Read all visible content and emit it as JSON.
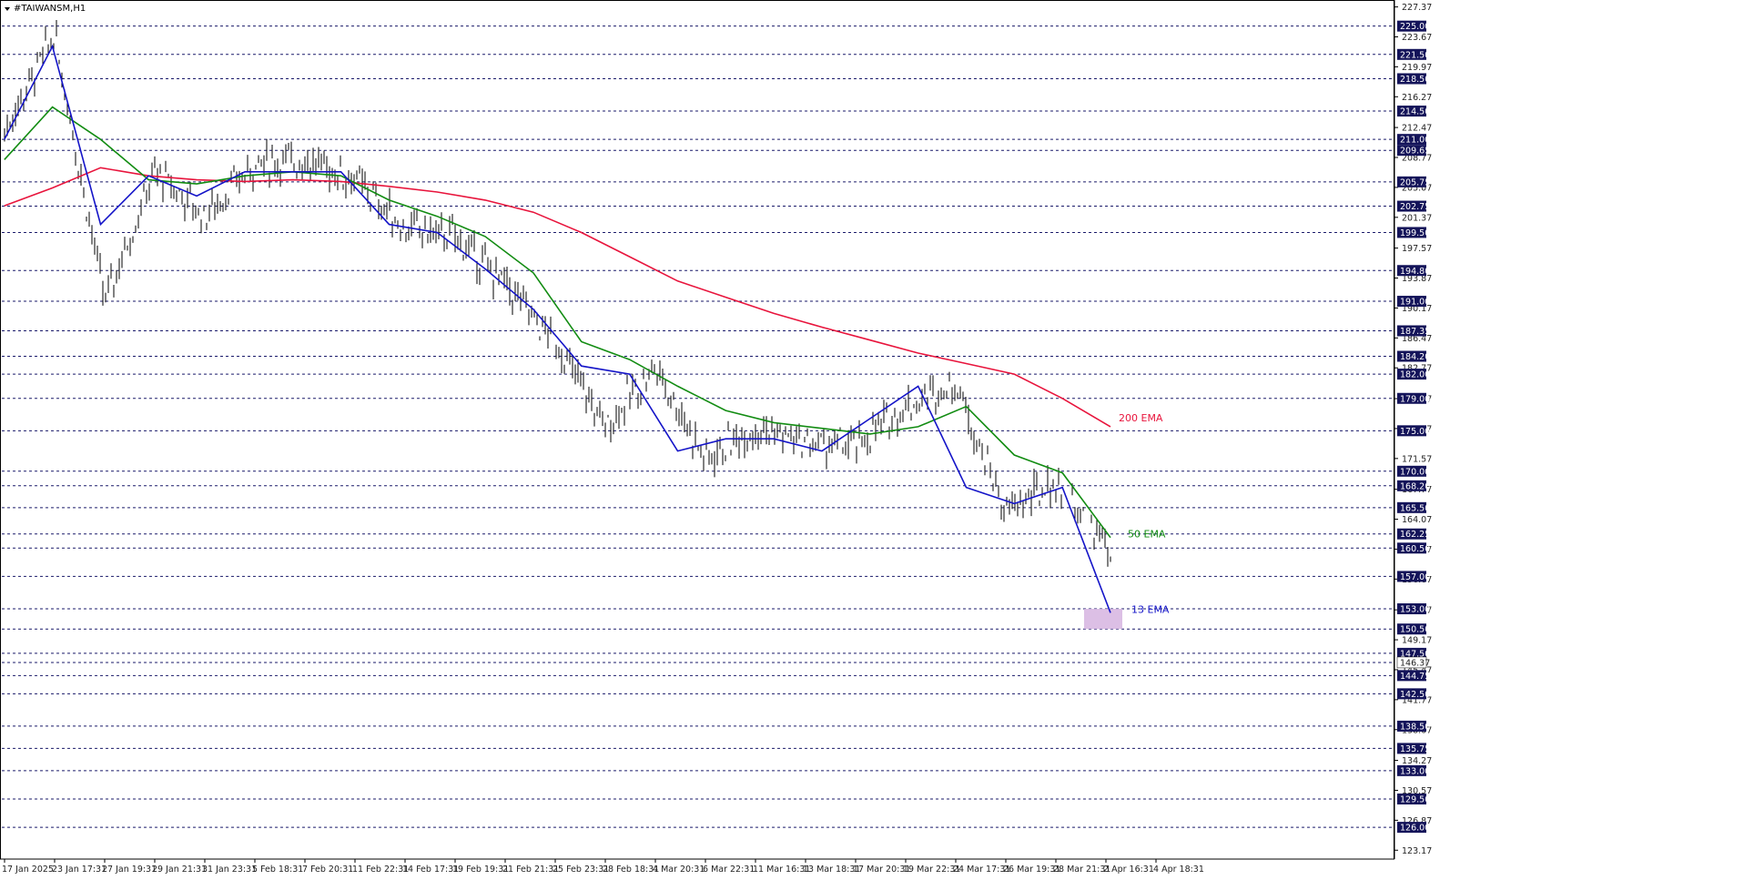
{
  "chart_data": {
    "type": "line",
    "title": "#TAIWANSM,H1",
    "x_labels": [
      "17 Jan 2025",
      "23 Jan 17:31",
      "27 Jan 19:31",
      "29 Jan 21:31",
      "31 Jan 23:31",
      "5 Feb 18:31",
      "7 Feb 20:31",
      "11 Feb 22:31",
      "14 Feb 17:31",
      "19 Feb 19:31",
      "21 Feb 21:31",
      "25 Feb 23:31",
      "28 Feb 18:31",
      "4 Mar 20:31",
      "6 Mar 22:31",
      "11 Mar 16:31",
      "13 Mar 18:31",
      "17 Mar 20:31",
      "19 Mar 22:31",
      "24 Mar 17:31",
      "26 Mar 19:31",
      "28 Mar 21:31",
      "2 Apr 16:31",
      "4 Apr 18:31"
    ],
    "y_ticks": [
      "227.37",
      "223.67",
      "219.97",
      "216.27",
      "212.47",
      "208.77",
      "205.07",
      "201.37",
      "197.57",
      "193.87",
      "190.17",
      "186.47",
      "182.77",
      "178.97",
      "175.27",
      "171.57",
      "167.77",
      "164.07",
      "160.37",
      "156.67",
      "152.87",
      "149.17",
      "145.47",
      "141.77",
      "138.07",
      "134.27",
      "130.57",
      "126.87",
      "123.17"
    ],
    "ylim": [
      122.3,
      228.0
    ],
    "level_tags": [
      "225.00",
      "221.50",
      "218.50",
      "214.50",
      "211.00",
      "209.65",
      "205.75",
      "202.75",
      "199.50",
      "194.80",
      "191.00",
      "187.35",
      "184.20",
      "182.00",
      "179.00",
      "175.00",
      "170.00",
      "168.20",
      "165.50",
      "162.25",
      "160.50",
      "157.00",
      "153.00",
      "150.50",
      "147.50",
      "146.37",
      "144.75",
      "142.50",
      "138.50",
      "135.75",
      "133.00",
      "129.50",
      "126.00"
    ],
    "current_price": "146.37",
    "series": [
      {
        "name": "200 EMA",
        "color": "#e8143c",
        "values": [
          202.8,
          205.0,
          207.5,
          206.5,
          206.0,
          205.8,
          206.0,
          205.8,
          205.2,
          204.5,
          203.5,
          202.0,
          199.5,
          196.5,
          193.5,
          191.5,
          189.5,
          187.8,
          186.2,
          184.6,
          183.3,
          182.0,
          179.0,
          175.5
        ]
      },
      {
        "name": "50 EMA",
        "color": "#128c12",
        "values": [
          208.5,
          215.0,
          211.0,
          206.0,
          205.5,
          206.5,
          207.0,
          206.5,
          203.5,
          201.5,
          199.0,
          194.5,
          186.0,
          183.8,
          180.5,
          177.5,
          176.0,
          175.3,
          174.6,
          175.5,
          178.0,
          172.0,
          169.8,
          161.8
        ]
      },
      {
        "name": "13 EMA",
        "color": "#1414c8",
        "values": [
          211.0,
          222.5,
          200.5,
          206.5,
          204.0,
          207.0,
          207.0,
          207.0,
          200.5,
          199.5,
          195.0,
          190.0,
          183.0,
          182.0,
          172.5,
          174.0,
          174.0,
          172.5,
          176.5,
          180.5,
          168.0,
          166.0,
          168.0,
          152.5
        ]
      }
    ],
    "price_path": [
      212.0,
      224.0,
      191.0,
      207.0,
      201.5,
      208.0,
      208.5,
      206.0,
      200.0,
      199.0,
      193.0,
      186.0,
      175.5,
      183.0,
      171.5,
      175.5,
      173.5,
      173.0,
      178.0,
      181.0,
      165.0,
      168.5,
      161.0,
      146.0
    ],
    "ema_labels": [
      "200 EMA",
      "50 EMA",
      "13 EMA"
    ],
    "highlight_zone": [
      150.5,
      153.0
    ],
    "grid": true,
    "colors": {
      "axis_tag_bg": "#14145a",
      "grid": "#1a1a6a",
      "candle": "#000000",
      "zone": "#d6b4e0"
    }
  }
}
